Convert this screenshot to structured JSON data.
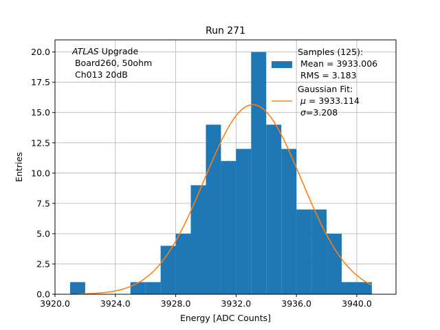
{
  "chart_data": {
    "type": "histogram",
    "title": "Run 271",
    "xlabel": "Energy [ADC Counts]",
    "ylabel": "Entries",
    "xlim": [
      3920.0,
      3942.6
    ],
    "ylim": [
      0,
      21.0
    ],
    "xticks": [
      3920.0,
      3924.0,
      3928.0,
      3932.0,
      3936.0,
      3940.0
    ],
    "xtick_labels": [
      "3920.0",
      "3924.0",
      "3928.0",
      "3932.0",
      "3936.0",
      "3940.0"
    ],
    "yticks": [
      0.0,
      2.5,
      5.0,
      7.5,
      10.0,
      12.5,
      15.0,
      17.5,
      20.0
    ],
    "ytick_labels": [
      "0.0",
      "2.5",
      "5.0",
      "7.5",
      "10.0",
      "12.5",
      "15.0",
      "17.5",
      "20.0"
    ],
    "grid": true,
    "bar_color": "#1f77b4",
    "fit_color": "#ff7f0e",
    "bins": [
      {
        "x0": 3921.0,
        "x1": 3922.0,
        "count": 1
      },
      {
        "x0": 3922.0,
        "x1": 3923.0,
        "count": 0
      },
      {
        "x0": 3923.0,
        "x1": 3924.0,
        "count": 0
      },
      {
        "x0": 3924.0,
        "x1": 3925.0,
        "count": 0
      },
      {
        "x0": 3925.0,
        "x1": 3926.0,
        "count": 1
      },
      {
        "x0": 3926.0,
        "x1": 3927.0,
        "count": 1
      },
      {
        "x0": 3927.0,
        "x1": 3928.0,
        "count": 4
      },
      {
        "x0": 3928.0,
        "x1": 3929.0,
        "count": 5
      },
      {
        "x0": 3929.0,
        "x1": 3930.0,
        "count": 9
      },
      {
        "x0": 3930.0,
        "x1": 3931.0,
        "count": 14
      },
      {
        "x0": 3931.0,
        "x1": 3932.0,
        "count": 11
      },
      {
        "x0": 3932.0,
        "x1": 3933.0,
        "count": 12
      },
      {
        "x0": 3933.0,
        "x1": 3934.0,
        "count": 20
      },
      {
        "x0": 3934.0,
        "x1": 3935.0,
        "count": 14
      },
      {
        "x0": 3935.0,
        "x1": 3936.0,
        "count": 12
      },
      {
        "x0": 3936.0,
        "x1": 3937.0,
        "count": 7
      },
      {
        "x0": 3937.0,
        "x1": 3938.0,
        "count": 7
      },
      {
        "x0": 3938.0,
        "x1": 3939.0,
        "count": 5
      },
      {
        "x0": 3939.0,
        "x1": 3940.0,
        "count": 1
      },
      {
        "x0": 3940.0,
        "x1": 3941.0,
        "count": 1
      }
    ],
    "fit": {
      "mu": 3933.114,
      "sigma": 3.208,
      "amplitude": 15.65,
      "x_range": [
        3921.5,
        3941.0
      ]
    },
    "annotation": {
      "prefix_italic": "ATLAS",
      "line1_rest": " Upgrade",
      "line2": " Board260, 50ohm",
      "line3": " Ch013 20dB"
    },
    "legend": {
      "placement": "top-right",
      "samples_line1": "Samples (125):",
      "samples_line2": " Mean = 3933.006",
      "samples_line3": " RMS = 3.183",
      "fit_line1": "Gaussian Fit:",
      "fit_line2_symbol": "μ",
      "fit_line2_rest": " = 3933.114",
      "fit_line3_symbol": "σ",
      "fit_line3_rest": "=3.208"
    }
  }
}
